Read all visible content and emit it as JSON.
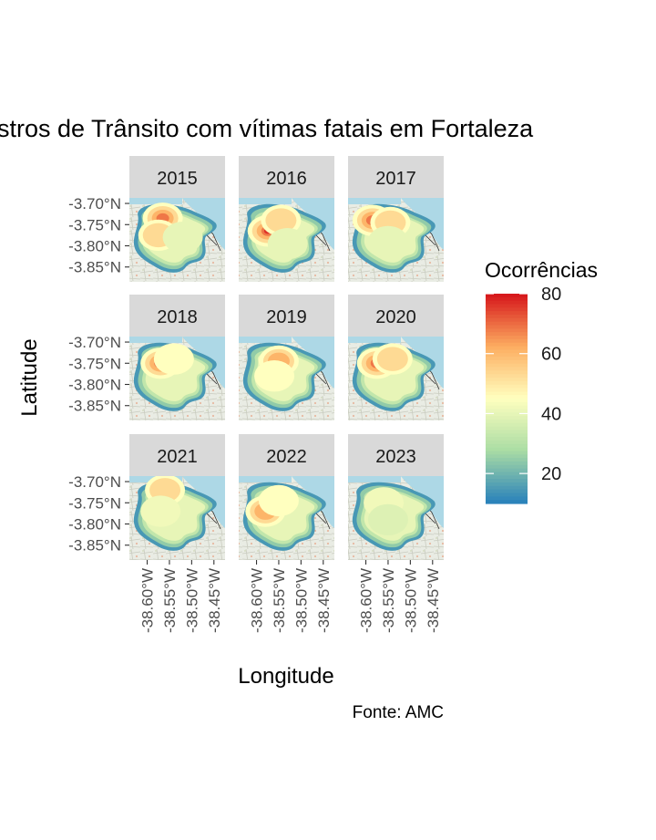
{
  "chart_data": {
    "type": "heatmap",
    "title": "stros de Trânsito com vítimas fatais em Fortaleza",
    "xlabel": "Longitude",
    "ylabel": "Latitude",
    "caption": "Fonte: AMC",
    "legend": {
      "title": "Ocorrências",
      "position": "right",
      "ticks": [
        20,
        40,
        60,
        80
      ],
      "range": [
        10,
        80
      ]
    },
    "x_ticks": [
      "-38.60°W",
      "-38.55°W",
      "-38.50°W",
      "-38.45°W"
    ],
    "y_ticks": [
      "-3.70°N",
      "-3.75°N",
      "-3.80°N",
      "-3.85°N"
    ],
    "colors": {
      "scale": [
        "#2b83ba",
        "#abdda4",
        "#ffffbf",
        "#fdae61",
        "#d7191c"
      ],
      "water": "#add8e6",
      "strip": "#d9d9d9"
    },
    "panels": [
      {
        "label": "2015",
        "hotspots": [
          {
            "lon": -38.565,
            "lat": -3.735,
            "value": 70
          },
          {
            "lon": -38.575,
            "lat": -3.775,
            "value": 55
          },
          {
            "lon": -38.52,
            "lat": -3.78,
            "value": 40
          }
        ]
      },
      {
        "label": "2016",
        "hotspots": [
          {
            "lon": -38.575,
            "lat": -3.765,
            "value": 80
          },
          {
            "lon": -38.545,
            "lat": -3.74,
            "value": 60
          },
          {
            "lon": -38.53,
            "lat": -3.795,
            "value": 40
          }
        ]
      },
      {
        "label": "2017",
        "hotspots": [
          {
            "lon": -38.585,
            "lat": -3.74,
            "value": 72
          },
          {
            "lon": -38.545,
            "lat": -3.745,
            "value": 58
          },
          {
            "lon": -38.55,
            "lat": -3.79,
            "value": 40
          }
        ]
      },
      {
        "label": "2018",
        "hotspots": [
          {
            "lon": -38.57,
            "lat": -3.75,
            "value": 72
          },
          {
            "lon": -38.54,
            "lat": -3.74,
            "value": 52
          }
        ]
      },
      {
        "label": "2019",
        "hotspots": [
          {
            "lon": -38.55,
            "lat": -3.745,
            "value": 66
          },
          {
            "lon": -38.56,
            "lat": -3.78,
            "value": 45
          }
        ]
      },
      {
        "label": "2020",
        "hotspots": [
          {
            "lon": -38.575,
            "lat": -3.75,
            "value": 70
          },
          {
            "lon": -38.54,
            "lat": -3.74,
            "value": 55
          }
        ]
      },
      {
        "label": "2021",
        "hotspots": [
          {
            "lon": -38.56,
            "lat": -3.72,
            "value": 55
          },
          {
            "lon": -38.57,
            "lat": -3.77,
            "value": 42
          }
        ]
      },
      {
        "label": "2022",
        "hotspots": [
          {
            "lon": -38.58,
            "lat": -3.77,
            "value": 68
          },
          {
            "lon": -38.55,
            "lat": -3.745,
            "value": 48
          }
        ]
      },
      {
        "label": "2023",
        "hotspots": [
          {
            "lon": -38.56,
            "lat": -3.75,
            "value": 42
          },
          {
            "lon": -38.55,
            "lat": -3.79,
            "value": 38
          }
        ]
      }
    ]
  }
}
